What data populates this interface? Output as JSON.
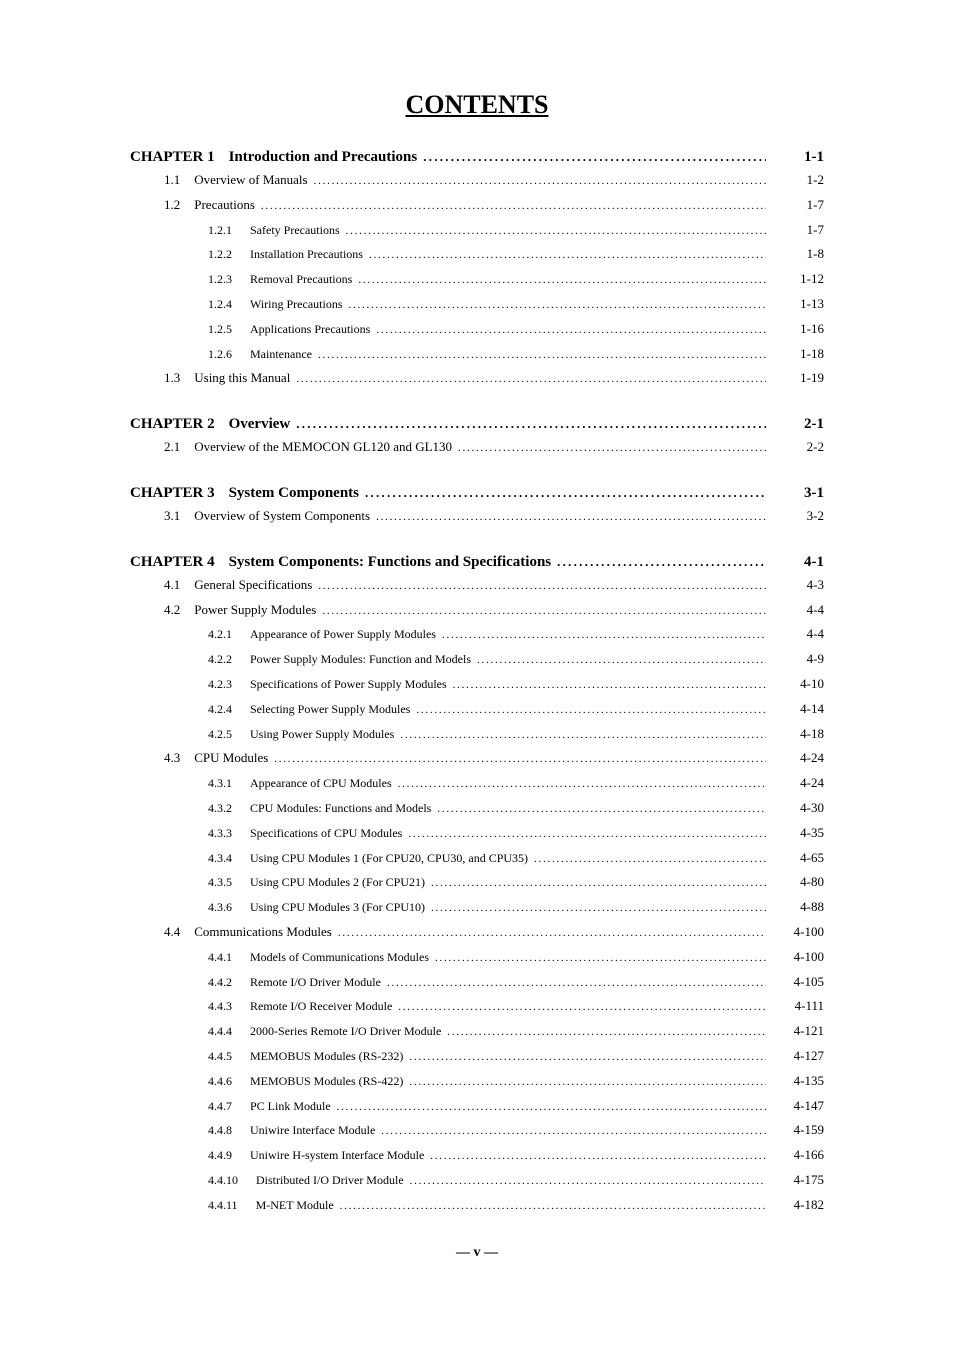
{
  "title": "CONTENTS",
  "footer": "— v —",
  "toc": [
    {
      "type": "chapter",
      "label": "CHAPTER 1",
      "title": "Introduction and Precautions",
      "page": "1-1"
    },
    {
      "type": "section",
      "num": "1.1",
      "title": "Overview of Manuals",
      "page": "1-2"
    },
    {
      "type": "section",
      "num": "1.2",
      "title": "Precautions",
      "page": "1-7"
    },
    {
      "type": "sub",
      "num": "1.2.1",
      "title": "Safety Precautions",
      "page": "1-7"
    },
    {
      "type": "sub",
      "num": "1.2.2",
      "title": "Installation Precautions",
      "page": "1-8"
    },
    {
      "type": "sub",
      "num": "1.2.3",
      "title": "Removal Precautions",
      "page": "1-12"
    },
    {
      "type": "sub",
      "num": "1.2.4",
      "title": "Wiring Precautions",
      "page": "1-13"
    },
    {
      "type": "sub",
      "num": "1.2.5",
      "title": "Applications Precautions",
      "page": "1-16"
    },
    {
      "type": "sub",
      "num": "1.2.6",
      "title": "Maintenance",
      "page": "1-18"
    },
    {
      "type": "section",
      "num": "1.3",
      "title": "Using this Manual",
      "page": "1-19"
    },
    {
      "type": "chapter",
      "label": "CHAPTER 2",
      "title": "Overview",
      "page": "2-1"
    },
    {
      "type": "section",
      "num": "2.1",
      "title": "Overview of the MEMOCON GL120 and GL130",
      "page": "2-2"
    },
    {
      "type": "chapter",
      "label": "CHAPTER 3",
      "title": "System Components",
      "page": "3-1"
    },
    {
      "type": "section",
      "num": "3.1",
      "title": "Overview of System Components",
      "page": "3-2"
    },
    {
      "type": "chapter",
      "label": "CHAPTER 4",
      "title": "System Components: Functions and Specifications",
      "page": "4-1"
    },
    {
      "type": "section",
      "num": "4.1",
      "title": "General Specifications",
      "page": "4-3"
    },
    {
      "type": "section",
      "num": "4.2",
      "title": "Power Supply Modules",
      "page": "4-4"
    },
    {
      "type": "sub",
      "num": "4.2.1",
      "title": "Appearance of Power Supply Modules",
      "page": "4-4"
    },
    {
      "type": "sub",
      "num": "4.2.2",
      "title": "Power Supply Modules: Function and Models",
      "page": "4-9"
    },
    {
      "type": "sub",
      "num": "4.2.3",
      "title": "Specifications of Power Supply Modules",
      "page": "4-10"
    },
    {
      "type": "sub",
      "num": "4.2.4",
      "title": "Selecting Power Supply Modules",
      "page": "4-14"
    },
    {
      "type": "sub",
      "num": "4.2.5",
      "title": "Using Power Supply Modules",
      "page": "4-18"
    },
    {
      "type": "section",
      "num": "4.3",
      "title": "CPU Modules",
      "page": "4-24"
    },
    {
      "type": "sub",
      "num": "4.3.1",
      "title": "Appearance of CPU Modules",
      "page": "4-24"
    },
    {
      "type": "sub",
      "num": "4.3.2",
      "title": "CPU Modules: Functions and Models",
      "page": "4-30"
    },
    {
      "type": "sub",
      "num": "4.3.3",
      "title": "Specifications of CPU Modules",
      "page": "4-35"
    },
    {
      "type": "sub",
      "num": "4.3.4",
      "title": "Using CPU Modules 1 (For CPU20, CPU30, and CPU35)",
      "page": "4-65"
    },
    {
      "type": "sub",
      "num": "4.3.5",
      "title": "Using CPU Modules 2 (For CPU21)",
      "page": "4-80"
    },
    {
      "type": "sub",
      "num": "4.3.6",
      "title": "Using CPU Modules 3 (For CPU10)",
      "page": "4-88"
    },
    {
      "type": "section",
      "num": "4.4",
      "title": "Communications Modules",
      "page": "4-100"
    },
    {
      "type": "sub",
      "num": "4.4.1",
      "title": "Models of Communications Modules",
      "page": "4-100"
    },
    {
      "type": "sub",
      "num": "4.4.2",
      "title": "Remote I/O Driver Module",
      "page": "4-105"
    },
    {
      "type": "sub",
      "num": "4.4.3",
      "title": "Remote I/O Receiver Module",
      "page": "4-111"
    },
    {
      "type": "sub",
      "num": "4.4.4",
      "title": "2000-Series Remote I/O Driver Module",
      "page": "4-121"
    },
    {
      "type": "sub",
      "num": "4.4.5",
      "title": "MEMOBUS Modules (RS-232)",
      "page": "4-127"
    },
    {
      "type": "sub",
      "num": "4.4.6",
      "title": "MEMOBUS Modules (RS-422)",
      "page": "4-135"
    },
    {
      "type": "sub",
      "num": "4.4.7",
      "title": "PC Link Module",
      "page": "4-147"
    },
    {
      "type": "sub",
      "num": "4.4.8",
      "title": "Uniwire Interface Module",
      "page": "4-159"
    },
    {
      "type": "sub",
      "num": "4.4.9",
      "title": "Uniwire H-system Interface Module",
      "page": "4-166"
    },
    {
      "type": "sub",
      "num": "4.4.10",
      "title": "Distributed I/O Driver Module",
      "page": "4-175"
    },
    {
      "type": "sub",
      "num": "4.4.11",
      "title": "M-NET Module",
      "page": "4-182"
    }
  ]
}
